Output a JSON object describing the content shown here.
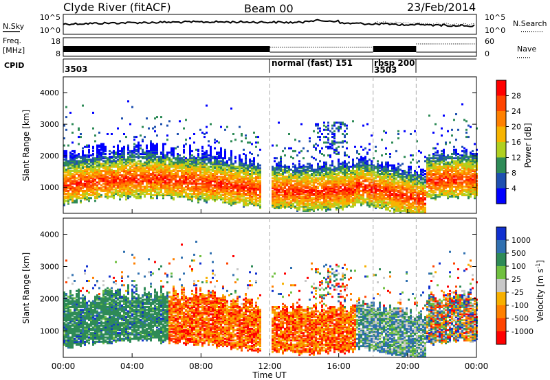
{
  "header": {
    "station": "Clyde River (fitACF)",
    "beam": "Beam 00",
    "date": "23/Feb/2014"
  },
  "strip_panels": {
    "nsky": {
      "left_label": "N.Sky",
      "left_ticks": [
        "10^5",
        "10^0"
      ],
      "right_label": "N.Search",
      "right_ticks": [
        "10^5",
        "10^0"
      ]
    },
    "freq": {
      "left_label_1": "Freq.",
      "left_label_2": "[MHz]",
      "left_ticks": [
        "18",
        "8"
      ],
      "right_label": "Nave",
      "right_ticks": [
        "60",
        "0"
      ]
    },
    "cpid": {
      "label": "CPID",
      "segments": [
        {
          "start_h": 0.0,
          "text": "3503"
        },
        {
          "start_h": 12.0,
          "text": "normal (fast) 151"
        },
        {
          "start_h": 18.0,
          "text": "rbsp 200"
        },
        {
          "start_h": 18.0,
          "text": "3503"
        }
      ]
    }
  },
  "chart_data": [
    {
      "type": "heatmap",
      "name": "power",
      "ylabel": "Slant Range [km]",
      "ylim": [
        180,
        4500
      ],
      "yticks": [
        1000,
        2000,
        3000,
        4000
      ],
      "xlim": [
        0,
        24
      ],
      "colorbar": {
        "label": "Power [dB]",
        "ticks": [
          "28",
          "24",
          "20",
          "16",
          "12",
          "8",
          "4"
        ],
        "colors": [
          "#ff0000",
          "#ff4400",
          "#ff8000",
          "#f7b400",
          "#b0d020",
          "#2e8b57",
          "#1e50b0",
          "#0000ff"
        ]
      },
      "mode_change_lines_h": [
        12.0,
        18.0,
        20.5
      ]
    },
    {
      "type": "heatmap",
      "name": "velocity",
      "ylabel": "Slant Range [km]",
      "ylim": [
        180,
        4500
      ],
      "yticks": [
        1000,
        2000,
        3000,
        4000
      ],
      "xlim": [
        0,
        24
      ],
      "xticks": [
        "00:00",
        "04:00",
        "08:00",
        "12:00",
        "16:00",
        "20:00",
        "00:00"
      ],
      "xlabel": "Time UT",
      "colorbar": {
        "label": "Velocity  [m s",
        "label_sup": "-1",
        "label_end": "]",
        "ticks": [
          "1000",
          "500",
          "100",
          "25",
          "-25",
          "-100",
          "-500",
          "-1000"
        ],
        "colors": [
          "#1030d0",
          "#3070b0",
          "#2e8b57",
          "#70c040",
          "#c8c8c8",
          "#f7b000",
          "#ff8000",
          "#ff4400",
          "#ff0000"
        ]
      },
      "mode_change_lines_h": [
        12.0,
        18.0,
        20.5
      ]
    }
  ]
}
